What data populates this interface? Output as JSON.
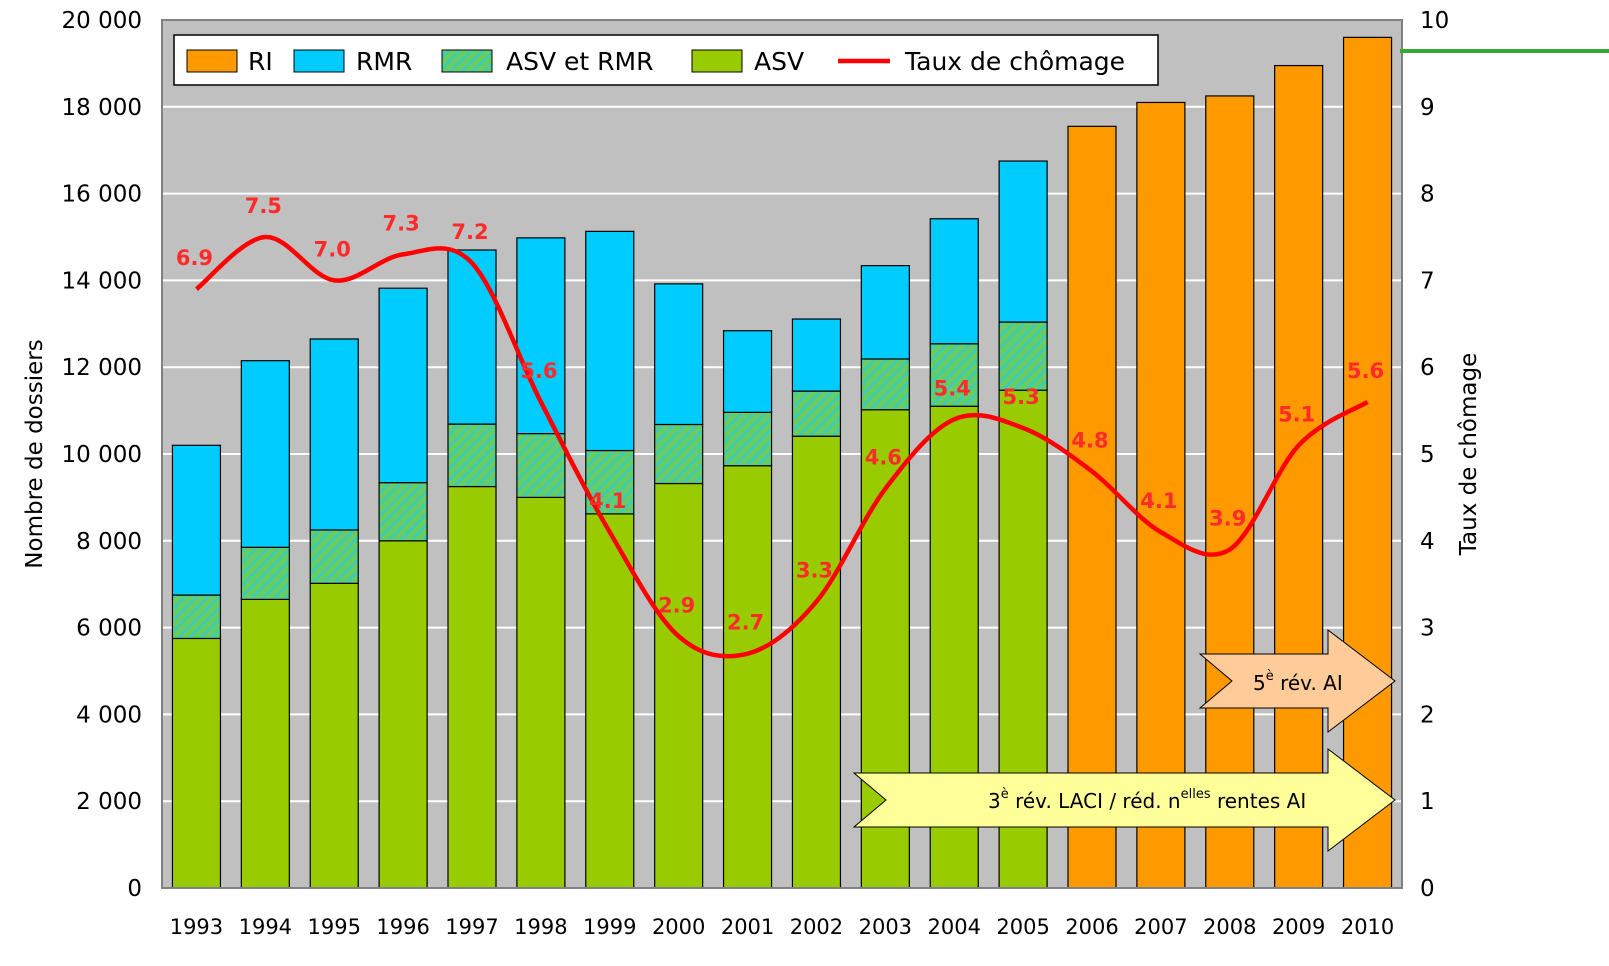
{
  "chart_data": {
    "type": "bar",
    "stacked": true,
    "categories": [
      "1993",
      "1994",
      "1995",
      "1996",
      "1997",
      "1998",
      "1999",
      "2000",
      "2001",
      "2002",
      "2003",
      "2004",
      "2005",
      "2006",
      "2007",
      "2008",
      "2009",
      "2010"
    ],
    "series": [
      {
        "name": "ASV",
        "color": "#99cc00",
        "values": [
          5750,
          6650,
          7020,
          8000,
          9250,
          9000,
          8620,
          9320,
          9730,
          10410,
          11020,
          11100,
          11470,
          0,
          0,
          0,
          0,
          0
        ]
      },
      {
        "name": "ASV et RMR",
        "color": "#66cc66",
        "pattern": "hatched",
        "values": [
          1000,
          1200,
          1230,
          1340,
          1440,
          1470,
          1460,
          1360,
          1230,
          1040,
          1170,
          1440,
          1570,
          0,
          0,
          0,
          0,
          0
        ]
      },
      {
        "name": "RMR",
        "color": "#00ccff",
        "values": [
          3450,
          4300,
          4400,
          4480,
          4010,
          4510,
          5050,
          3240,
          1880,
          1660,
          2150,
          2880,
          3710,
          0,
          0,
          0,
          0,
          0
        ]
      },
      {
        "name": "RI",
        "color": "#ff9900",
        "values": [
          0,
          0,
          0,
          0,
          0,
          0,
          0,
          0,
          0,
          0,
          0,
          0,
          0,
          17550,
          18100,
          18250,
          18950,
          19600
        ]
      }
    ],
    "line_series": {
      "name": "Taux de chômage",
      "color": "#ff0000",
      "axis": "right",
      "values": [
        6.9,
        7.5,
        7.0,
        7.3,
        7.2,
        5.6,
        4.1,
        2.9,
        2.7,
        3.3,
        4.6,
        5.4,
        5.3,
        4.8,
        4.1,
        3.9,
        5.1,
        5.6
      ],
      "labels": [
        "6.9",
        "7.5",
        "7.0",
        "7.3",
        "7.2",
        "5.6",
        "4.1",
        "2.9",
        "2.7",
        "3.3",
        "4.6",
        "5.4",
        "5.3",
        "4.8",
        "4.1",
        "3.9",
        "5.1",
        "5.6"
      ]
    },
    "ylabel": "Nombre de dossiers",
    "y2label": "Taux de chômage",
    "ylim": [
      0,
      20000
    ],
    "y2lim": [
      0,
      10
    ],
    "yticks": [
      "0",
      "2 000",
      "4 000",
      "6 000",
      "8 000",
      "10 000",
      "12 000",
      "14 000",
      "16 000",
      "18 000",
      "20 000"
    ],
    "y2ticks": [
      "0",
      "1",
      "2",
      "3",
      "4",
      "5",
      "6",
      "7",
      "8",
      "9",
      "10"
    ],
    "grid": true,
    "plot_background": "#c0c0c0",
    "legend": {
      "position": "top-left",
      "entries": [
        "RI",
        "RMR",
        "ASV et RMR",
        "ASV",
        "Taux de chômage"
      ]
    },
    "annotations": [
      {
        "id": "rev5",
        "text_base": "5",
        "text_sup": "è",
        "text_rest": " rév. AI",
        "fill": "#ffcc99",
        "from_year": "2006",
        "to_year": "2010"
      },
      {
        "id": "laci",
        "text_base": "3",
        "text_sup": "è",
        "text_mid": " rév. LACI / réd. n",
        "text_sup2": "elles",
        "text_rest": " rentes AI",
        "fill": "#ffff99",
        "from_year": "2002",
        "to_year": "2010"
      }
    ]
  }
}
